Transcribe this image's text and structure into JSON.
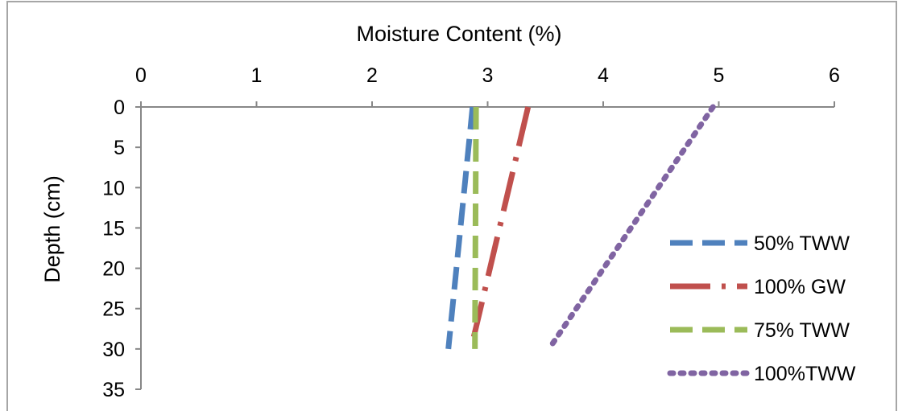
{
  "chart_data": {
    "type": "line",
    "title": "",
    "xlabel": "Moisture Content (%)",
    "ylabel": "Depth (cm)",
    "x_axis_position": "top",
    "y_axis_inverted": true,
    "xlim": [
      0,
      6
    ],
    "ylim": [
      0,
      35
    ],
    "x_ticks": [
      0,
      1,
      2,
      3,
      4,
      5,
      6
    ],
    "y_ticks": [
      0,
      5,
      10,
      15,
      20,
      25,
      30,
      35
    ],
    "x_tick_labels": [
      "0",
      "1",
      "2",
      "3",
      "4",
      "5",
      "6"
    ],
    "y_tick_labels": [
      "0",
      "5",
      "10",
      "15",
      "20",
      "25",
      "30",
      "35"
    ],
    "grid": false,
    "legend_placement": "right",
    "series": [
      {
        "name": "50% TWW",
        "color": "#4F81BD",
        "dash": "dashed",
        "points": [
          {
            "x": 2.87,
            "y": 0
          },
          {
            "x": 2.66,
            "y": 30
          }
        ]
      },
      {
        "name": "100% GW",
        "color": "#C0504D",
        "dash": "long-dash-dot",
        "points": [
          {
            "x": 3.35,
            "y": 0
          },
          {
            "x": 2.88,
            "y": 28.5
          }
        ]
      },
      {
        "name": "75% TWW",
        "color": "#9BBB59",
        "dash": "dashed",
        "points": [
          {
            "x": 2.9,
            "y": 0
          },
          {
            "x": 2.89,
            "y": 30
          }
        ]
      },
      {
        "name": "100%TWW",
        "color": "#8064A2",
        "dash": "dotted",
        "points": [
          {
            "x": 4.95,
            "y": 0
          },
          {
            "x": 3.53,
            "y": 30
          }
        ]
      }
    ]
  }
}
